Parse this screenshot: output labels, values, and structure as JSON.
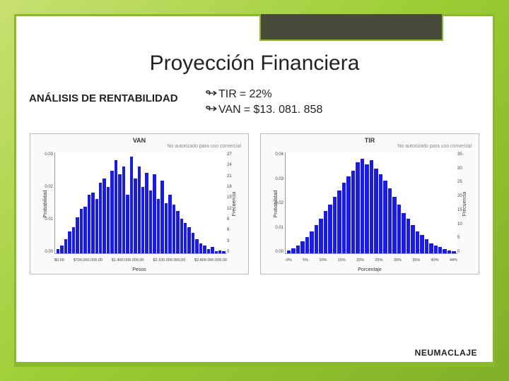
{
  "title": "Proyección Financiera",
  "subtitle": "ANÁLISIS DE RENTABILIDAD",
  "bullets": [
    {
      "label": "TIR",
      "value": "= 22%"
    },
    {
      "label": "VAN",
      "value": "= $13. 081. 858"
    }
  ],
  "footer_brand": "NEUMACLAJE",
  "colors": {
    "background_gradient_from": "#c8e070",
    "background_gradient_to": "#7fb028",
    "slide_bg": "#ffffff",
    "accent": "#8ab82e",
    "topbox": "#4a4a3a",
    "bar_color": "#1a1ae6",
    "chart_border": "#bbbbbb",
    "axis": "#999999",
    "text": "#222222"
  },
  "chart_van": {
    "type": "histogram",
    "title": "VAN",
    "watermark": "No autorizado para uso comercial",
    "ylabel_left": "Probabilidad",
    "ylabel_right": "Frecuencia",
    "xlabel": "Pesos",
    "xticks": [
      "$0,00",
      "$700.000.000,00",
      "$1.400.000.000,00",
      "$2.100.000.000,00",
      "$2.800.000.000,00"
    ],
    "yticks_left": [
      "0.03",
      "0.02",
      "0.01",
      "0.00"
    ],
    "yticks_right": [
      "27",
      "24",
      "21",
      "18",
      "15",
      "12",
      "9",
      "6",
      "3",
      "0"
    ],
    "ylim": [
      0,
      0.031
    ],
    "bar_heights_pct": [
      4,
      8,
      14,
      22,
      26,
      36,
      44,
      46,
      58,
      60,
      54,
      70,
      74,
      66,
      82,
      92,
      78,
      86,
      58,
      96,
      74,
      86,
      66,
      80,
      62,
      78,
      54,
      72,
      50,
      58,
      48,
      42,
      34,
      30,
      26,
      20,
      14,
      10,
      8,
      4,
      6,
      2,
      3,
      2
    ]
  },
  "chart_tir": {
    "type": "histogram",
    "title": "TIR",
    "watermark": "No autorizado para uso comercial",
    "ylabel_left": "Probabilidad",
    "ylabel_right": "Frecuencia",
    "xlabel": "Porcentaje",
    "xticks": [
      "-0%",
      "5%",
      "10%",
      "15%",
      "20%",
      "25%",
      "30%",
      "35%",
      "40%",
      "44%"
    ],
    "yticks_left": [
      "0.04",
      "0.03",
      "0.02",
      "0.01",
      "0.00"
    ],
    "yticks_right": [
      "35",
      "30",
      "25",
      "20",
      "15",
      "10",
      "5",
      "0"
    ],
    "ylim": [
      0,
      0.042
    ],
    "bar_heights_pct": [
      3,
      5,
      8,
      12,
      16,
      22,
      28,
      34,
      42,
      48,
      56,
      62,
      70,
      76,
      82,
      90,
      94,
      88,
      92,
      84,
      78,
      72,
      64,
      56,
      48,
      40,
      34,
      28,
      22,
      18,
      14,
      10,
      8,
      6,
      4,
      3,
      2
    ]
  }
}
